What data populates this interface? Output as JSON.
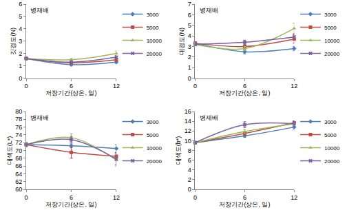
{
  "chart_data": [
    {
      "type": "line",
      "annotation": "병재배",
      "x_label": "저장기간(상온, 일)",
      "y_label": "깃경도(N)",
      "x": [
        0,
        6,
        12
      ],
      "xlim": [
        0,
        12
      ],
      "xticks": [
        0,
        6,
        12
      ],
      "ylim": [
        0,
        6
      ],
      "yticks": [
        0,
        1,
        2,
        3,
        4,
        5,
        6
      ],
      "grid": false,
      "legend": "right",
      "line_style": "smooth",
      "series": [
        {
          "name": "3000",
          "color": "#4a7ebb",
          "marker": "diamond",
          "values": [
            1.6,
            1.1,
            1.3
          ],
          "errors": [
            0.1,
            0.1,
            0.1
          ]
        },
        {
          "name": "5000",
          "color": "#be4b48",
          "marker": "square",
          "values": [
            1.6,
            1.25,
            1.5
          ],
          "errors": [
            0.1,
            0.1,
            0.15
          ]
        },
        {
          "name": "10000",
          "color": "#98b954",
          "marker": "triangle",
          "values": [
            1.6,
            1.5,
            2.0
          ],
          "errors": [
            0.1,
            0.1,
            0.2
          ]
        },
        {
          "name": "20000",
          "color": "#7d60a0",
          "marker": "x",
          "values": [
            1.6,
            1.3,
            1.7
          ],
          "errors": [
            0.1,
            0.1,
            0.15
          ]
        }
      ]
    },
    {
      "type": "line",
      "annotation": "병재배",
      "x_label": "저장기간(상온, 일)",
      "y_label": "대경도(N)",
      "x": [
        0,
        6,
        12
      ],
      "xlim": [
        0,
        12
      ],
      "xticks": [
        0,
        6,
        12
      ],
      "ylim": [
        0,
        7
      ],
      "yticks": [
        0,
        1,
        2,
        3,
        4,
        5,
        6,
        7
      ],
      "grid": false,
      "legend": "right",
      "line_style": "smooth",
      "series": [
        {
          "name": "3000",
          "color": "#4a7ebb",
          "marker": "diamond",
          "values": [
            3.3,
            2.5,
            2.8
          ],
          "errors": [
            0.15,
            0.2,
            0.2
          ]
        },
        {
          "name": "5000",
          "color": "#be4b48",
          "marker": "square",
          "values": [
            3.3,
            3.0,
            3.7
          ],
          "errors": [
            0.15,
            0.4,
            0.4
          ]
        },
        {
          "name": "10000",
          "color": "#98b954",
          "marker": "triangle",
          "values": [
            3.2,
            2.8,
            4.7
          ],
          "errors": [
            0.15,
            0.2,
            0.5
          ]
        },
        {
          "name": "20000",
          "color": "#7d60a0",
          "marker": "x",
          "values": [
            3.2,
            3.4,
            3.9
          ],
          "errors": [
            0.15,
            0.2,
            0.3
          ]
        }
      ]
    },
    {
      "type": "line",
      "annotation": "병재배",
      "x_label": "저장기간(상온, 일)",
      "y_label": "대색도(L*)",
      "x": [
        0,
        6,
        12
      ],
      "xlim": [
        0,
        12
      ],
      "xticks": [
        0,
        6,
        12
      ],
      "ylim": [
        60,
        80
      ],
      "yticks": [
        60,
        62,
        64,
        66,
        68,
        70,
        72,
        74,
        76,
        78,
        80
      ],
      "grid": false,
      "legend": "right",
      "line_style": "smooth",
      "series": [
        {
          "name": "3000",
          "color": "#4a7ebb",
          "marker": "diamond",
          "values": [
            71.5,
            71.2,
            70.5
          ],
          "errors": [
            0.5,
            0.5,
            1.0
          ]
        },
        {
          "name": "5000",
          "color": "#be4b48",
          "marker": "square",
          "values": [
            71.5,
            69.5,
            68.5
          ],
          "errors": [
            0.5,
            1.5,
            1.0
          ]
        },
        {
          "name": "10000",
          "color": "#98b954",
          "marker": "triangle",
          "values": [
            71.5,
            73.3,
            67.5
          ],
          "errors": [
            0.5,
            1.0,
            1.5
          ]
        },
        {
          "name": "20000",
          "color": "#7d60a0",
          "marker": "x",
          "values": [
            71.5,
            72.8,
            67.8
          ],
          "errors": [
            0.5,
            0.8,
            1.5
          ]
        }
      ]
    },
    {
      "type": "line",
      "annotation": "병재배",
      "x_label": "저장기간(상온, 일)",
      "y_label": "대색도(b*)",
      "x": [
        0,
        6,
        12
      ],
      "xlim": [
        0,
        12
      ],
      "xticks": [
        0,
        6,
        12
      ],
      "ylim": [
        0,
        16
      ],
      "yticks": [
        0,
        2,
        4,
        6,
        8,
        10,
        12,
        14,
        16
      ],
      "grid": false,
      "legend": "right",
      "line_style": "smooth",
      "series": [
        {
          "name": "3000",
          "color": "#4a7ebb",
          "marker": "diamond",
          "values": [
            9.6,
            11.0,
            12.8
          ],
          "errors": [
            0.2,
            0.3,
            0.4
          ]
        },
        {
          "name": "5000",
          "color": "#be4b48",
          "marker": "square",
          "values": [
            9.6,
            11.5,
            13.7
          ],
          "errors": [
            0.2,
            0.4,
            0.4
          ]
        },
        {
          "name": "10000",
          "color": "#98b954",
          "marker": "triangle",
          "values": [
            9.6,
            11.9,
            13.5
          ],
          "errors": [
            0.2,
            0.4,
            0.3
          ]
        },
        {
          "name": "20000",
          "color": "#7d60a0",
          "marker": "x",
          "values": [
            9.6,
            13.3,
            13.5
          ],
          "errors": [
            0.2,
            0.6,
            0.4
          ]
        }
      ]
    }
  ]
}
